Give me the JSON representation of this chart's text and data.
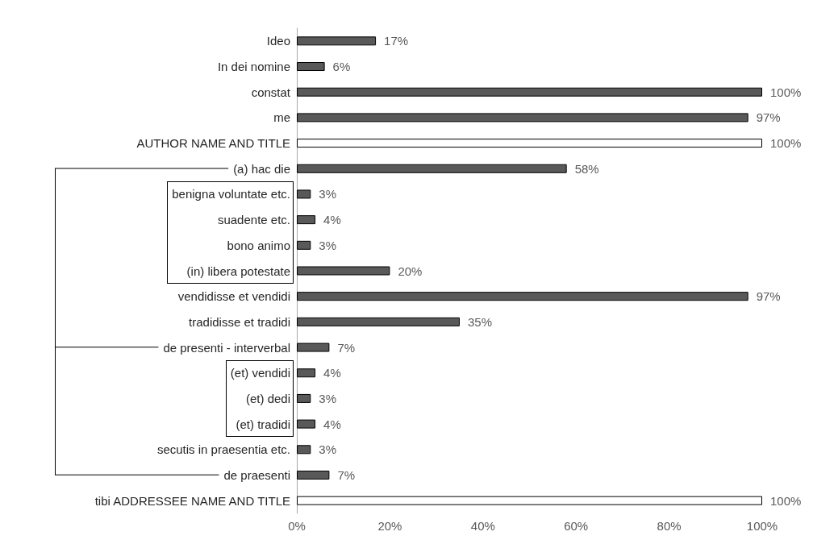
{
  "chart_data": {
    "type": "bar",
    "orientation": "horizontal",
    "categories": [
      "Ideo",
      "In dei nomine",
      "constat",
      "me",
      "AUTHOR NAME AND TITLE",
      "(a) hac die",
      "benigna voluntate etc.",
      "suadente etc.",
      "bono animo",
      "(in) libera potestate",
      "vendidisse et vendidi",
      "tradidisse et tradidi",
      "de presenti - interverbal",
      "(et) vendidi",
      "(et) dedi",
      "(et) tradidi",
      "secutis in praesentia etc.",
      "de praesenti",
      "tibi ADDRESSEE NAME AND TITLE"
    ],
    "values": [
      17,
      6,
      100,
      97,
      100,
      58,
      3,
      4,
      3,
      20,
      97,
      35,
      7,
      4,
      3,
      4,
      3,
      7,
      100
    ],
    "value_labels": [
      "17%",
      "6%",
      "100%",
      "97%",
      "100%",
      "58%",
      "3%",
      "4%",
      "3%",
      "20%",
      "97%",
      "35%",
      "7%",
      "4%",
      "3%",
      "4%",
      "3%",
      "7%",
      "100%"
    ],
    "colors": [
      "#595959",
      "#595959",
      "#595959",
      "#595959",
      "#ffffff",
      "#595959",
      "#595959",
      "#595959",
      "#595959",
      "#595959",
      "#595959",
      "#595959",
      "#595959",
      "#595959",
      "#595959",
      "#595959",
      "#595959",
      "#595959",
      "#ffffff"
    ],
    "xlim": [
      0,
      100
    ],
    "xticks": [
      {
        "value": 0,
        "label": "0%"
      },
      {
        "value": 20,
        "label": "20%"
      },
      {
        "value": 40,
        "label": "40%"
      },
      {
        "value": 60,
        "label": "60%"
      },
      {
        "value": 80,
        "label": "80%"
      },
      {
        "value": 100,
        "label": "100%"
      }
    ],
    "grid": false
  }
}
